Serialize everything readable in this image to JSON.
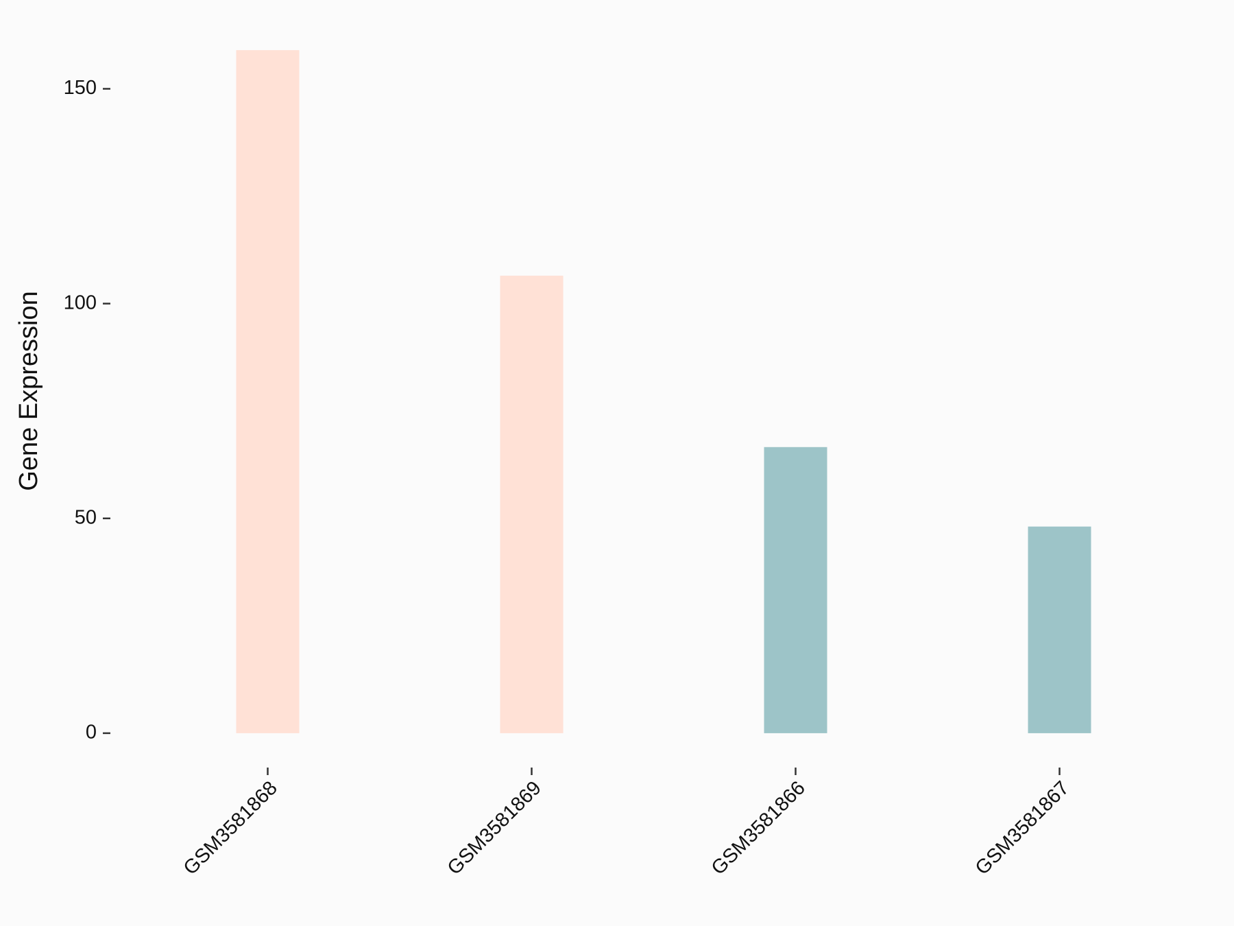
{
  "chart_data": {
    "type": "bar",
    "y_label": "Gene Expression",
    "categories": [
      "GSM3581868",
      "GSM3581869",
      "GSM3581866",
      "GSM3581867"
    ],
    "values": [
      159,
      106.5,
      66.6,
      48.1
    ],
    "colors": [
      "#ffe1d6",
      "#ffe1d6",
      "#9dc4c8",
      "#9dc4c8"
    ],
    "ylim": [
      -8,
      167
    ],
    "yticks": [
      0,
      50,
      100,
      150
    ],
    "grid": false
  }
}
